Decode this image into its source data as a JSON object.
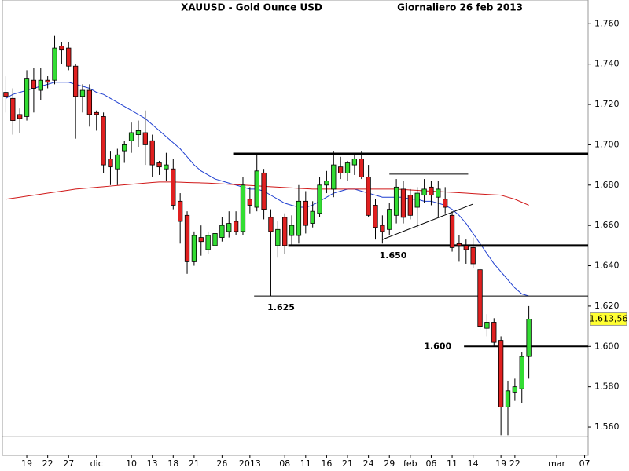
{
  "chart_data": {
    "type": "candlestick",
    "title": "XAUUSD - Gold Ounce USD",
    "subtitle": "Giornaliero  26 feb 2013",
    "up_color": "#33dd33",
    "down_color": "#e02020",
    "ylim": [
      1546,
      1764
    ],
    "yticks": [
      {
        "value": 1760,
        "label": "1.760"
      },
      {
        "value": 1740,
        "label": "1.740"
      },
      {
        "value": 1720,
        "label": "1.720"
      },
      {
        "value": 1700,
        "label": "1.700"
      },
      {
        "value": 1680,
        "label": "1.680"
      },
      {
        "value": 1660,
        "label": "1.660"
      },
      {
        "value": 1640,
        "label": "1.640"
      },
      {
        "value": 1620,
        "label": "1.620"
      },
      {
        "value": 1600,
        "label": "1.600"
      },
      {
        "value": 1580,
        "label": "1.580"
      },
      {
        "value": 1560,
        "label": "1.560"
      }
    ],
    "categories": [
      null,
      null,
      null,
      "19",
      null,
      null,
      "22",
      null,
      null,
      "27",
      null,
      null,
      null,
      "dic",
      null,
      null,
      null,
      null,
      "10",
      null,
      null,
      "13",
      null,
      null,
      "18",
      null,
      null,
      "21",
      null,
      null,
      null,
      "26",
      null,
      null,
      null,
      "2013",
      null,
      null,
      null,
      null,
      "08",
      null,
      null,
      "11",
      null,
      null,
      "16",
      null,
      null,
      "21",
      null,
      null,
      "24",
      null,
      null,
      "29",
      null,
      null,
      "feb",
      null,
      null,
      "06",
      null,
      null,
      "11",
      null,
      null,
      "14",
      null,
      null,
      null,
      "19",
      null,
      "22",
      null,
      null,
      null,
      null,
      null,
      "mar",
      null,
      null,
      null,
      "07"
    ],
    "open": [
      1726,
      1723,
      1715,
      1714,
      1732,
      1727,
      1732,
      1732,
      1749,
      1748,
      1739,
      1724,
      1727,
      1716,
      1714,
      1693,
      1688,
      1697,
      1702,
      1705,
      1706,
      1702,
      1691,
      1688,
      1688,
      1672,
      1665,
      1642,
      1654,
      1648,
      1650,
      1654,
      1657,
      1662,
      1657,
      1673,
      1669,
      1686,
      1664,
      1650,
      1664,
      1655,
      1655,
      1672,
      1661,
      1666,
      1680,
      1678,
      1689,
      1686,
      1690,
      1693,
      1684,
      1670,
      1660,
      1658,
      1665,
      1678,
      1675,
      1669,
      1675,
      1679,
      1674,
      1673,
      1665,
      1651,
      1650,
      1649,
      1638,
      1609,
      1612,
      1603,
      1570,
      1577,
      1579,
      1595,
      null,
      null,
      null,
      null,
      null,
      null,
      null,
      null
    ],
    "high": [
      1734,
      1728,
      1718,
      1737,
      1738,
      1738,
      1734,
      1754,
      1751,
      1751,
      1740,
      1730,
      1730,
      1717,
      1716,
      1697,
      1698,
      1702,
      1711,
      1712,
      1717,
      1705,
      1692,
      1696,
      1693,
      1676,
      1667,
      1657,
      1660,
      1657,
      1665,
      1664,
      1667,
      1667,
      1684,
      1679,
      1695,
      1688,
      1668,
      1662,
      1666,
      1665,
      1680,
      1677,
      1672,
      1684,
      1687,
      1697,
      1694,
      1692,
      1696,
      1697,
      1690,
      1673,
      1665,
      1671,
      1683,
      1682,
      1678,
      1679,
      1683,
      1682,
      1682,
      1679,
      1667,
      1655,
      1653,
      1654,
      1639,
      1616,
      1614,
      1605,
      1583,
      1584,
      1597,
      1620,
      null,
      null,
      null,
      null,
      null,
      null,
      null,
      null
    ],
    "low": [
      1716,
      1705,
      1706,
      1712,
      1716,
      1722,
      1728,
      1730,
      1740,
      1737,
      1703,
      1716,
      1709,
      1707,
      1686,
      1680,
      1680,
      1691,
      1696,
      1699,
      1690,
      1684,
      1685,
      1682,
      1668,
      1651,
      1636,
      1640,
      1645,
      1646,
      1648,
      1652,
      1654,
      1655,
      1655,
      1666,
      1667,
      1663,
      1625,
      1644,
      1646,
      1650,
      1651,
      1656,
      1659,
      1664,
      1676,
      1674,
      1683,
      1682,
      1685,
      1683,
      1664,
      1653,
      1651,
      1655,
      1661,
      1661,
      1663,
      1659,
      1671,
      1670,
      1664,
      1666,
      1647,
      1642,
      1641,
      1639,
      1608,
      1605,
      1600,
      1556,
      1556,
      1573,
      1572,
      1584,
      null,
      null,
      null,
      null,
      null,
      null,
      null,
      null
    ],
    "close": [
      1724,
      1712,
      1713,
      1733,
      1728,
      1732,
      1731,
      1748,
      1747,
      1739,
      1724,
      1727,
      1715,
      1715,
      1690,
      1689,
      1695,
      1700,
      1706,
      1707,
      1700,
      1690,
      1689,
      1690,
      1670,
      1662,
      1642,
      1655,
      1652,
      1655,
      1656,
      1660,
      1661,
      1657,
      1680,
      1670,
      1687,
      1668,
      1657,
      1658,
      1650,
      1660,
      1672,
      1660,
      1667,
      1680,
      1682,
      1690,
      1686,
      1691,
      1693,
      1684,
      1665,
      1659,
      1657,
      1668,
      1679,
      1664,
      1665,
      1676,
      1678,
      1675,
      1678,
      1669,
      1649,
      1650,
      1648,
      1641,
      1610,
      1612,
      1602,
      1570,
      1578,
      1580,
      1595,
      1613.56,
      null,
      null,
      null,
      null,
      null,
      null,
      null,
      null
    ],
    "overlays": [
      {
        "color": "#1f3fd0",
        "values": [
          1723,
          1725,
          1726,
          1727,
          1728,
          1729,
          1730,
          1731,
          1731,
          1731,
          1730,
          1729,
          1728,
          1726,
          1725,
          1723,
          1721,
          1719,
          1717,
          1715,
          1713,
          1710,
          1707,
          1704,
          1701,
          1698,
          1694,
          1690,
          1687,
          1685,
          1683,
          1682,
          1681,
          1680,
          1679,
          1678,
          1678,
          1677,
          1675,
          1673,
          1671,
          1670,
          1669,
          1669,
          1670,
          1672,
          1674,
          1676,
          1677,
          1678,
          1678,
          1677,
          1676,
          1675,
          1674,
          1674,
          1674,
          1674,
          1673,
          1673,
          1672,
          1672,
          1671,
          1670,
          1668,
          1665,
          1661,
          1656,
          1651,
          1646,
          1641,
          1637,
          1633,
          1629,
          1626,
          1625,
          null,
          null,
          null,
          null,
          null,
          null,
          null,
          null
        ]
      },
      {
        "color": "#d01818",
        "values": [
          1673,
          1673.5,
          1674,
          1674.5,
          1675,
          1675.5,
          1676,
          1676.5,
          1677,
          1677.5,
          1678,
          1678.3,
          1678.6,
          1678.9,
          1679.2,
          1679.5,
          1679.8,
          1680.1,
          1680.4,
          1680.7,
          1681,
          1681.3,
          1681.5,
          1681.5,
          1681.5,
          1681.4,
          1681.3,
          1681.2,
          1681.1,
          1681,
          1680.8,
          1680.6,
          1680.4,
          1680.2,
          1680,
          1679.8,
          1679.6,
          1679.4,
          1679.2,
          1679,
          1678.8,
          1678.6,
          1678.4,
          1678.2,
          1678,
          1678,
          1678,
          1678,
          1678,
          1678,
          1678,
          1678,
          1678,
          1678,
          1678,
          1678,
          1678,
          1677.8,
          1677.6,
          1677.4,
          1677.2,
          1677,
          1676.8,
          1676.6,
          1676.4,
          1676.2,
          1676,
          1675.8,
          1675.6,
          1675.4,
          1675.2,
          1675,
          1674,
          1673,
          1671.5,
          1670,
          null,
          null,
          null,
          null,
          null,
          null,
          null,
          null
        ]
      }
    ],
    "levels": [
      {
        "value": 1695.5,
        "start": 32.6,
        "width": 3
      },
      {
        "value": 1650,
        "label": "1.650",
        "start": 40.5,
        "width": 3
      },
      {
        "value": 1625,
        "label": "1.625",
        "start": 35.6,
        "width": 1
      },
      {
        "value": 1600,
        "label": "1.600",
        "start": 65.7,
        "width": 2
      },
      {
        "value": 1555.5,
        "start": -0.5,
        "width": 1
      }
    ],
    "trendlines": [
      {
        "x": [
          54,
          67
        ],
        "y": [
          1653,
          1670.6
        ]
      },
      {
        "x": [
          55,
          66.3
        ],
        "y": [
          1685.4,
          1685.4
        ]
      }
    ],
    "last": {
      "value": 1613.56,
      "label": "1.613,56",
      "color": "#ffff33"
    }
  }
}
